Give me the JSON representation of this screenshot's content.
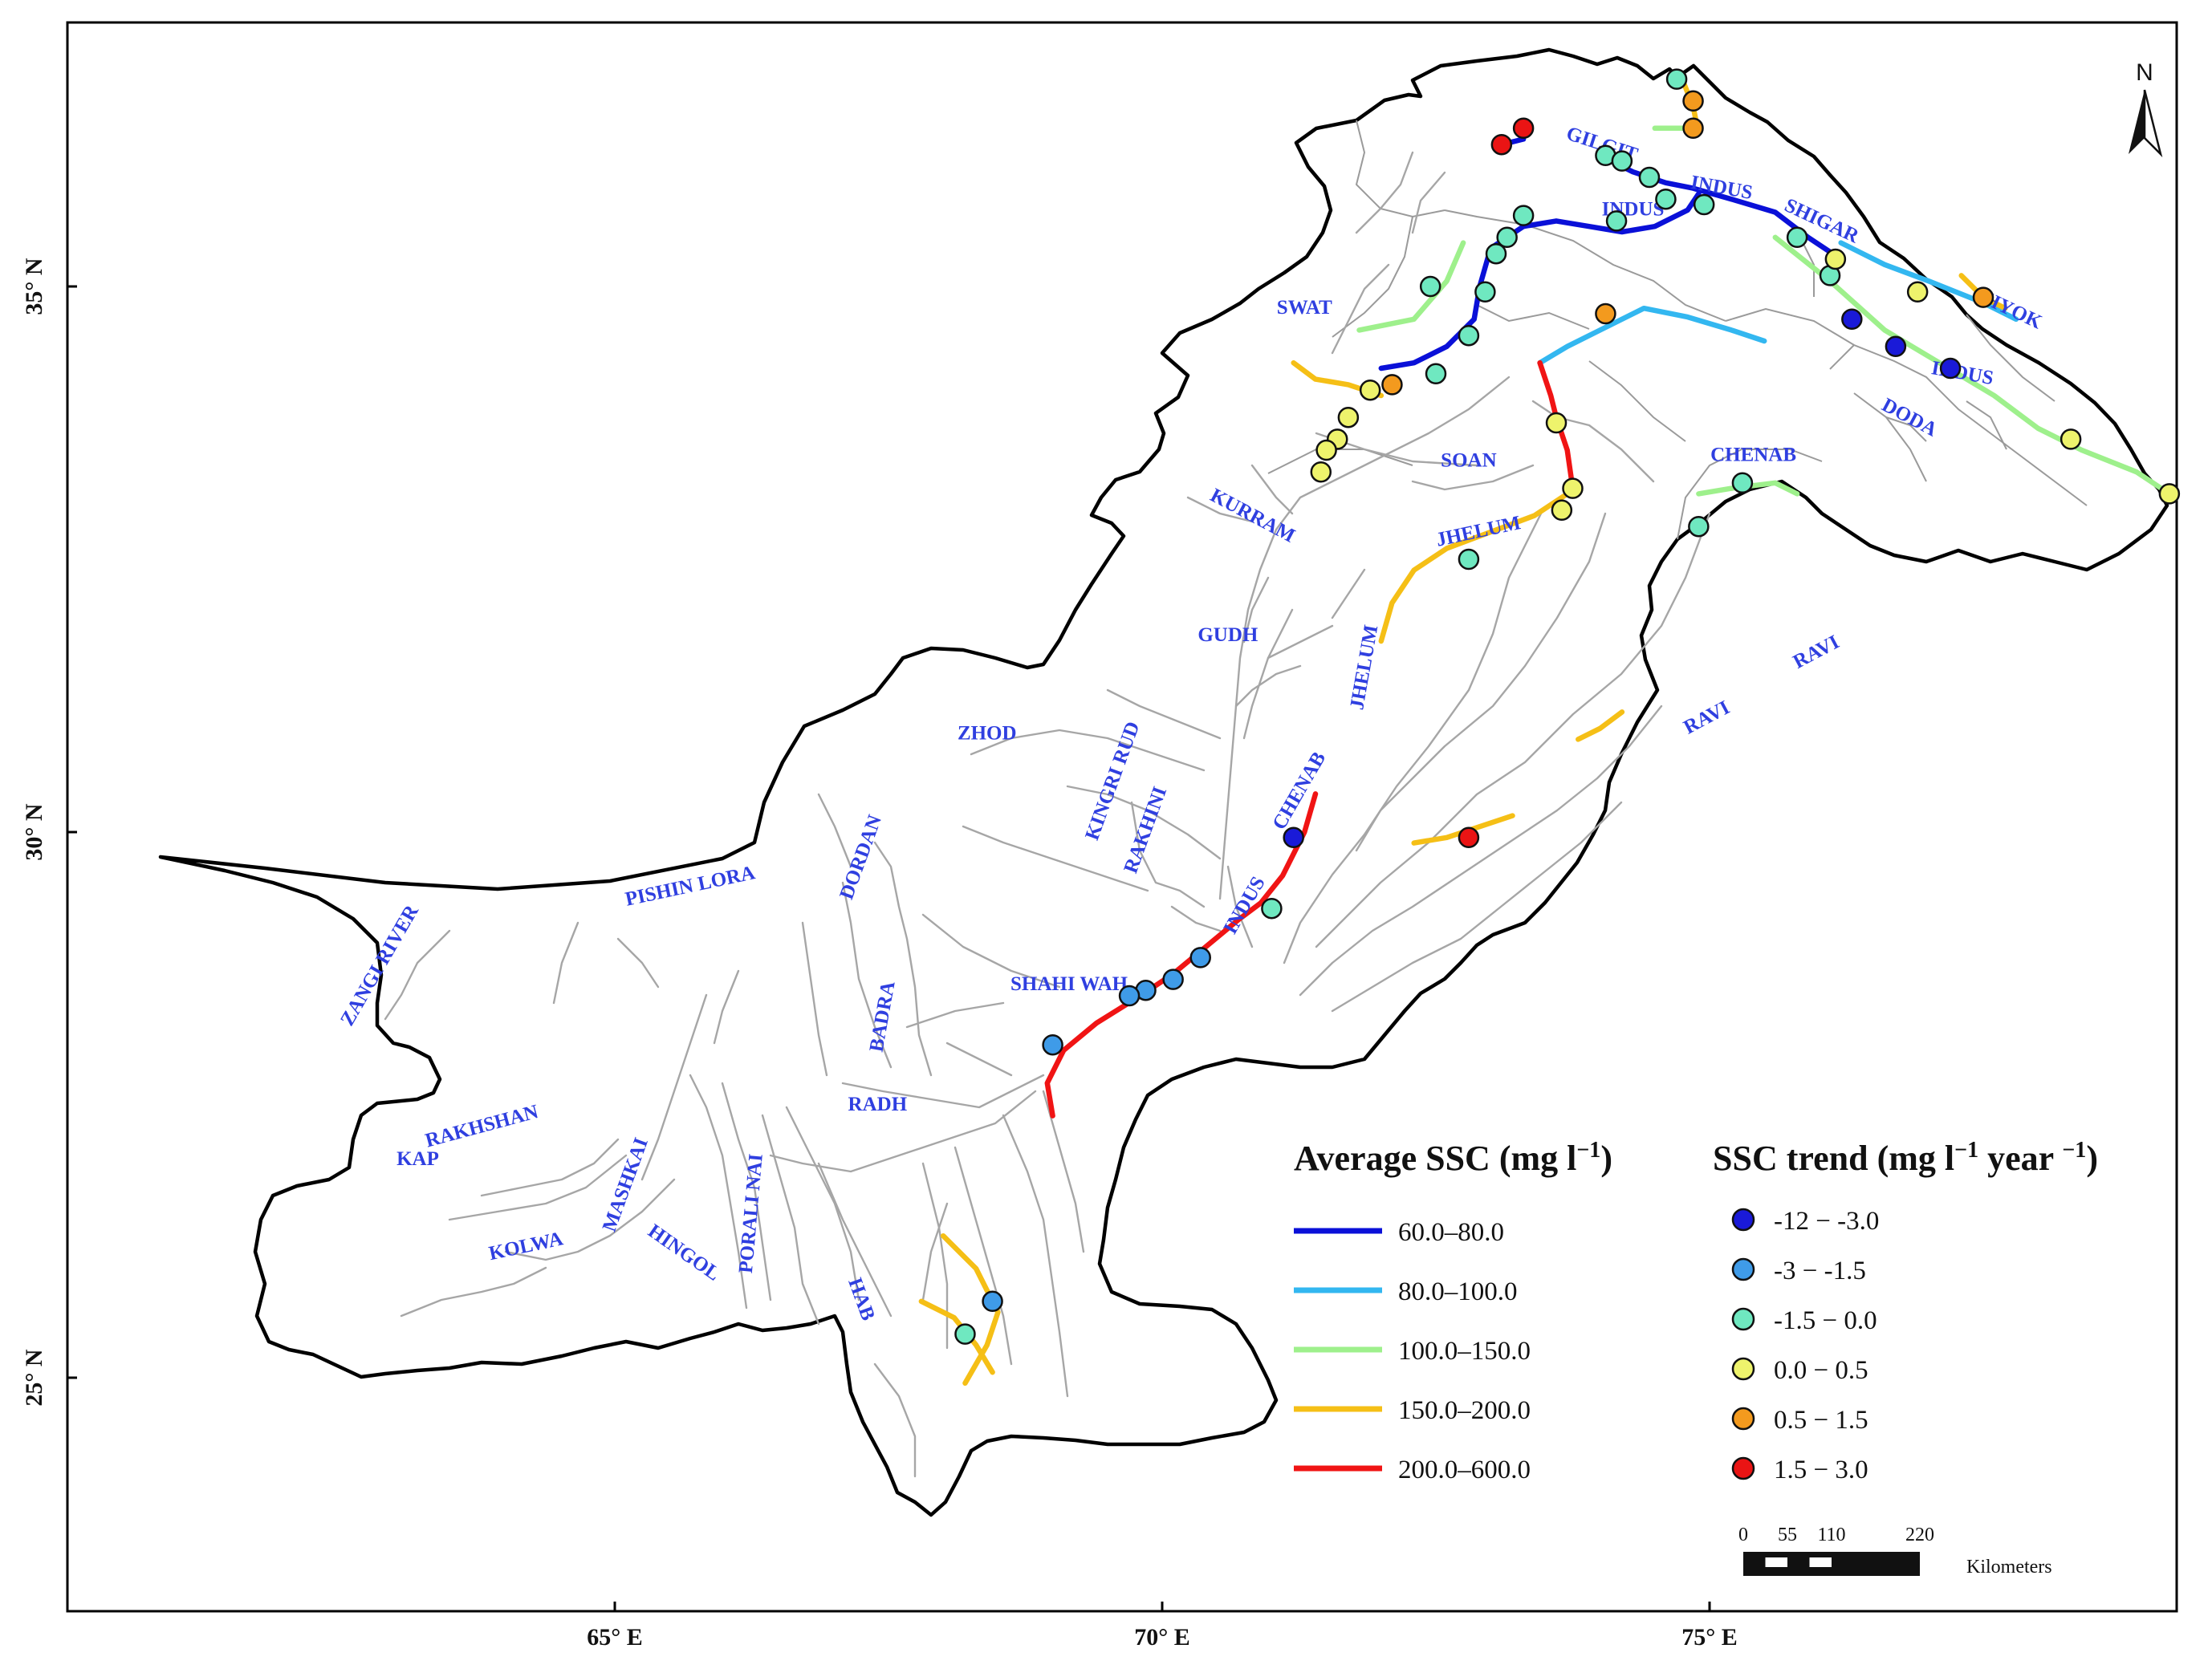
{
  "axes": {
    "x_ticks": [
      {
        "label": "65° E",
        "lon": 65
      },
      {
        "label": "70° E",
        "lon": 70
      },
      {
        "label": "75° E",
        "lon": 75
      }
    ],
    "y_ticks": [
      {
        "label": "25° N",
        "lat": 25
      },
      {
        "label": "30° N",
        "lat": 30
      },
      {
        "label": "35° N",
        "lat": 35
      }
    ]
  },
  "north_arrow": {
    "label": "N",
    "icon": "north-arrow-icon"
  },
  "rivers": [
    {
      "name": "GILGIT",
      "lon": 74.0,
      "lat": 36.25,
      "rotate": 18
    },
    {
      "name": "INDUS",
      "lon": 75.1,
      "lat": 35.85,
      "rotate": 10
    },
    {
      "name": "INDUS",
      "lon": 74.3,
      "lat": 35.65,
      "rotate": 0
    },
    {
      "name": "SHIGAR",
      "lon": 76.0,
      "lat": 35.55,
      "rotate": 25
    },
    {
      "name": "SHYOK",
      "lon": 77.7,
      "lat": 34.75,
      "rotate": 25
    },
    {
      "name": "INDUS",
      "lon": 77.3,
      "lat": 34.15,
      "rotate": 10
    },
    {
      "name": "DODA",
      "lon": 76.8,
      "lat": 33.75,
      "rotate": 28
    },
    {
      "name": "SWAT",
      "lon": 71.3,
      "lat": 34.75,
      "rotate": 0
    },
    {
      "name": "SOAN",
      "lon": 72.8,
      "lat": 33.35,
      "rotate": 0
    },
    {
      "name": "CHENAB",
      "lon": 75.4,
      "lat": 33.4,
      "rotate": 0
    },
    {
      "name": "KURRAM",
      "lon": 70.8,
      "lat": 32.85,
      "rotate": 28
    },
    {
      "name": "JHELUM",
      "lon": 72.9,
      "lat": 32.7,
      "rotate": -12
    },
    {
      "name": "GUDH",
      "lon": 70.6,
      "lat": 31.75,
      "rotate": 0
    },
    {
      "name": "JHELUM",
      "lon": 71.9,
      "lat": 31.5,
      "rotate": -80
    },
    {
      "name": "RAVI",
      "lon": 76.0,
      "lat": 31.6,
      "rotate": -28
    },
    {
      "name": "RAVI",
      "lon": 75.0,
      "lat": 31.0,
      "rotate": -28
    },
    {
      "name": "ZHOD",
      "lon": 68.4,
      "lat": 30.85,
      "rotate": 0
    },
    {
      "name": "KINGRI RUD",
      "lon": 69.6,
      "lat": 30.45,
      "rotate": -70
    },
    {
      "name": "RAKHINI",
      "lon": 69.9,
      "lat": 30.0,
      "rotate": -70
    },
    {
      "name": "CHENAB",
      "lon": 71.3,
      "lat": 30.35,
      "rotate": -60
    },
    {
      "name": "INDUS",
      "lon": 70.8,
      "lat": 29.3,
      "rotate": -60
    },
    {
      "name": "DORDAN",
      "lon": 67.3,
      "lat": 29.75,
      "rotate": -70
    },
    {
      "name": "PISHIN LORA",
      "lon": 65.7,
      "lat": 29.45,
      "rotate": -12
    },
    {
      "name": "ZANGI RIVER",
      "lon": 62.9,
      "lat": 28.75,
      "rotate": -60
    },
    {
      "name": "SHAHI WAH",
      "lon": 69.15,
      "lat": 28.55,
      "rotate": 0
    },
    {
      "name": "BADRA",
      "lon": 67.5,
      "lat": 28.3,
      "rotate": -80
    },
    {
      "name": "RADH",
      "lon": 67.4,
      "lat": 27.45,
      "rotate": 0
    },
    {
      "name": "RAKHSHAN",
      "lon": 63.8,
      "lat": 27.25,
      "rotate": -15
    },
    {
      "name": "KAP",
      "lon": 63.2,
      "lat": 26.95,
      "rotate": 0
    },
    {
      "name": "MASHKAI",
      "lon": 65.15,
      "lat": 26.75,
      "rotate": -70
    },
    {
      "name": "PORALI NAI",
      "lon": 66.3,
      "lat": 26.5,
      "rotate": -85
    },
    {
      "name": "KOLWA",
      "lon": 64.2,
      "lat": 26.15,
      "rotate": -12
    },
    {
      "name": "HINGOL",
      "lon": 65.6,
      "lat": 26.1,
      "rotate": 35
    },
    {
      "name": "HAB",
      "lon": 67.2,
      "lat": 25.7,
      "rotate": 70
    }
  ],
  "river_segments": [
    {
      "class_index": 0,
      "points": [
        [
          74.0,
          36.2
        ],
        [
          74.3,
          36.05
        ],
        [
          74.6,
          35.95
        ],
        [
          74.85,
          35.9
        ],
        [
          75.2,
          35.8
        ],
        [
          75.6,
          35.68
        ],
        [
          75.9,
          35.45
        ],
        [
          76.2,
          35.25
        ]
      ]
    },
    {
      "class_index": 0,
      "points": [
        [
          73.3,
          35.55
        ],
        [
          73.6,
          35.6
        ],
        [
          73.9,
          35.55
        ],
        [
          74.2,
          35.5
        ],
        [
          74.5,
          35.55
        ],
        [
          74.8,
          35.7
        ],
        [
          74.9,
          35.85
        ]
      ]
    },
    {
      "class_index": 0,
      "points": [
        [
          73.3,
          35.55
        ],
        [
          73.0,
          35.35
        ],
        [
          72.9,
          35.0
        ],
        [
          72.85,
          34.7
        ],
        [
          72.6,
          34.45
        ],
        [
          72.3,
          34.3
        ],
        [
          72.0,
          34.25
        ]
      ]
    },
    {
      "class_index": 0,
      "points": [
        [
          73.1,
          36.3
        ],
        [
          73.3,
          36.35
        ]
      ]
    },
    {
      "class_index": 1,
      "points": [
        [
          76.2,
          35.4
        ],
        [
          76.6,
          35.2
        ],
        [
          77.0,
          35.05
        ],
        [
          77.5,
          34.85
        ],
        [
          77.8,
          34.7
        ]
      ]
    },
    {
      "class_index": 1,
      "points": [
        [
          73.45,
          34.3
        ],
        [
          73.7,
          34.45
        ],
        [
          74.0,
          34.6
        ],
        [
          74.4,
          34.8
        ],
        [
          74.8,
          34.72
        ],
        [
          75.2,
          34.6
        ],
        [
          75.5,
          34.5
        ]
      ]
    },
    {
      "class_index": 2,
      "points": [
        [
          75.6,
          35.45
        ],
        [
          76.1,
          35.05
        ],
        [
          76.6,
          34.6
        ],
        [
          77.1,
          34.3
        ],
        [
          77.6,
          34.0
        ],
        [
          78.0,
          33.7
        ],
        [
          78.4,
          33.5
        ],
        [
          78.9,
          33.3
        ],
        [
          79.2,
          33.1
        ]
      ]
    },
    {
      "class_index": 2,
      "points": [
        [
          71.8,
          34.6
        ],
        [
          72.3,
          34.7
        ],
        [
          72.6,
          35.05
        ],
        [
          72.75,
          35.4
        ]
      ]
    },
    {
      "class_index": 2,
      "points": [
        [
          74.9,
          33.1
        ],
        [
          75.2,
          33.15
        ],
        [
          75.6,
          33.2
        ],
        [
          75.8,
          33.1
        ]
      ]
    },
    {
      "class_index": 2,
      "points": [
        [
          74.5,
          36.45
        ],
        [
          74.75,
          36.45
        ]
      ]
    },
    {
      "class_index": 3,
      "points": [
        [
          71.2,
          34.3
        ],
        [
          71.4,
          34.15
        ],
        [
          71.7,
          34.1
        ],
        [
          72.0,
          34.0
        ]
      ]
    },
    {
      "class_index": 3,
      "points": [
        [
          73.7,
          33.1
        ],
        [
          73.4,
          32.9
        ],
        [
          73.0,
          32.75
        ],
        [
          72.6,
          32.6
        ],
        [
          72.3,
          32.4
        ],
        [
          72.1,
          32.1
        ],
        [
          72.0,
          31.75
        ]
      ]
    },
    {
      "class_index": 3,
      "points": [
        [
          72.3,
          29.9
        ],
        [
          72.6,
          29.95
        ],
        [
          72.9,
          30.05
        ],
        [
          73.2,
          30.15
        ]
      ]
    },
    {
      "class_index": 3,
      "points": [
        [
          73.8,
          30.85
        ],
        [
          74.0,
          30.95
        ],
        [
          74.2,
          31.1
        ]
      ]
    },
    {
      "class_index": 3,
      "points": [
        [
          68.0,
          26.3
        ],
        [
          68.3,
          26.0
        ],
        [
          68.5,
          25.6
        ],
        [
          68.4,
          25.3
        ],
        [
          68.2,
          24.95
        ]
      ]
    },
    {
      "class_index": 3,
      "points": [
        [
          67.8,
          25.7
        ],
        [
          68.1,
          25.55
        ],
        [
          68.3,
          25.3
        ],
        [
          68.45,
          25.05
        ]
      ]
    },
    {
      "class_index": 3,
      "points": [
        [
          74.75,
          36.9
        ],
        [
          74.85,
          36.65
        ],
        [
          74.9,
          36.4
        ]
      ]
    },
    {
      "class_index": 3,
      "points": [
        [
          77.3,
          35.1
        ],
        [
          77.5,
          34.9
        ],
        [
          77.7,
          34.8
        ]
      ]
    },
    {
      "class_index": 4,
      "points": [
        [
          73.45,
          34.3
        ],
        [
          73.55,
          34.0
        ],
        [
          73.6,
          33.8
        ],
        [
          73.7,
          33.5
        ],
        [
          73.75,
          33.15
        ]
      ]
    },
    {
      "class_index": 4,
      "points": [
        [
          71.4,
          30.35
        ],
        [
          71.3,
          30.0
        ],
        [
          71.1,
          29.6
        ],
        [
          70.9,
          29.35
        ],
        [
          70.7,
          29.2
        ],
        [
          70.4,
          28.95
        ],
        [
          70.1,
          28.7
        ],
        [
          69.8,
          28.5
        ],
        [
          69.4,
          28.25
        ],
        [
          69.1,
          28.0
        ],
        [
          68.95,
          27.7
        ],
        [
          69.0,
          27.4
        ]
      ]
    }
  ],
  "stations": [
    {
      "lon": 73.1,
      "lat": 36.3,
      "class_index": 5
    },
    {
      "lon": 73.3,
      "lat": 36.45,
      "class_index": 5
    },
    {
      "lon": 72.8,
      "lat": 29.95,
      "class_index": 5
    },
    {
      "lon": 74.7,
      "lat": 36.9,
      "class_index": 2
    },
    {
      "lon": 74.85,
      "lat": 36.7,
      "class_index": 4
    },
    {
      "lon": 74.85,
      "lat": 36.45,
      "class_index": 4
    },
    {
      "lon": 74.05,
      "lat": 36.2,
      "class_index": 2
    },
    {
      "lon": 74.2,
      "lat": 36.15,
      "class_index": 2
    },
    {
      "lon": 74.45,
      "lat": 36.0,
      "class_index": 2
    },
    {
      "lon": 74.6,
      "lat": 35.8,
      "class_index": 2
    },
    {
      "lon": 74.95,
      "lat": 35.75,
      "class_index": 2
    },
    {
      "lon": 74.15,
      "lat": 35.6,
      "class_index": 2
    },
    {
      "lon": 73.3,
      "lat": 35.65,
      "class_index": 2
    },
    {
      "lon": 73.15,
      "lat": 35.45,
      "class_index": 2
    },
    {
      "lon": 73.05,
      "lat": 35.3,
      "class_index": 2
    },
    {
      "lon": 72.95,
      "lat": 34.95,
      "class_index": 2
    },
    {
      "lon": 72.8,
      "lat": 34.55,
      "class_index": 2
    },
    {
      "lon": 72.5,
      "lat": 34.2,
      "class_index": 2
    },
    {
      "lon": 72.45,
      "lat": 35.0,
      "class_index": 2
    },
    {
      "lon": 75.8,
      "lat": 35.45,
      "class_index": 2
    },
    {
      "lon": 76.1,
      "lat": 35.1,
      "class_index": 2
    },
    {
      "lon": 75.3,
      "lat": 33.2,
      "class_index": 2
    },
    {
      "lon": 74.9,
      "lat": 32.8,
      "class_index": 2
    },
    {
      "lon": 72.8,
      "lat": 32.5,
      "class_index": 2
    },
    {
      "lon": 71.0,
      "lat": 29.3,
      "class_index": 2
    },
    {
      "lon": 68.2,
      "lat": 25.4,
      "class_index": 2
    },
    {
      "lon": 76.15,
      "lat": 35.25,
      "class_index": 3
    },
    {
      "lon": 76.9,
      "lat": 34.95,
      "class_index": 3
    },
    {
      "lon": 78.3,
      "lat": 33.6,
      "class_index": 3
    },
    {
      "lon": 79.2,
      "lat": 33.1,
      "class_index": 3
    },
    {
      "lon": 71.9,
      "lat": 34.05,
      "class_index": 3
    },
    {
      "lon": 71.7,
      "lat": 33.8,
      "class_index": 3
    },
    {
      "lon": 71.6,
      "lat": 33.6,
      "class_index": 3
    },
    {
      "lon": 71.5,
      "lat": 33.5,
      "class_index": 3
    },
    {
      "lon": 71.45,
      "lat": 33.3,
      "class_index": 3
    },
    {
      "lon": 73.6,
      "lat": 33.75,
      "class_index": 3
    },
    {
      "lon": 73.75,
      "lat": 33.15,
      "class_index": 3
    },
    {
      "lon": 73.65,
      "lat": 32.95,
      "class_index": 3
    },
    {
      "lon": 72.1,
      "lat": 34.1,
      "class_index": 4
    },
    {
      "lon": 74.05,
      "lat": 34.75,
      "class_index": 4
    },
    {
      "lon": 77.5,
      "lat": 34.9,
      "class_index": 4
    },
    {
      "lon": 76.3,
      "lat": 34.7,
      "class_index": 0
    },
    {
      "lon": 76.7,
      "lat": 34.45,
      "class_index": 0
    },
    {
      "lon": 77.2,
      "lat": 34.25,
      "class_index": 0
    },
    {
      "lon": 71.2,
      "lat": 29.95,
      "class_index": 0
    },
    {
      "lon": 70.35,
      "lat": 28.85,
      "class_index": 1
    },
    {
      "lon": 70.1,
      "lat": 28.65,
      "class_index": 1
    },
    {
      "lon": 69.85,
      "lat": 28.55,
      "class_index": 1
    },
    {
      "lon": 69.7,
      "lat": 28.5,
      "class_index": 1
    },
    {
      "lon": 69.0,
      "lat": 28.05,
      "class_index": 1
    },
    {
      "lon": 68.45,
      "lat": 25.7,
      "class_index": 1
    }
  ],
  "legend": {
    "ssc_title": "Average SSC (mg l",
    "ssc_sup": "−1",
    "ssc_close": ")",
    "ssc_classes": [
      {
        "label": "60.0–80.0",
        "color": "#0a10d8"
      },
      {
        "label": "80.0–100.0",
        "color": "#33b7f0"
      },
      {
        "label": "100.0–150.0",
        "color": "#9ef08c"
      },
      {
        "label": "150.0–200.0",
        "color": "#f5bf16"
      },
      {
        "label": "200.0–600.0",
        "color": "#f01414"
      }
    ],
    "trend_title": "SSC trend (mg l",
    "trend_sup1": "−1",
    "trend_mid": " year ",
    "trend_sup2": "−1",
    "trend_close": ")",
    "trend_classes": [
      {
        "label": "-12 − -3.0",
        "color": "#1a1ad8"
      },
      {
        "label": "-3 − -1.5",
        "color": "#3f9be8"
      },
      {
        "label": "-1.5 − 0.0",
        "color": "#6fe8c0"
      },
      {
        "label": " 0.0 − 0.5",
        "color": "#eef36c"
      },
      {
        "label": "0.5 − 1.5",
        "color": "#f39a1e"
      },
      {
        "label": "1.5 − 3.0",
        "color": "#ea1414"
      }
    ]
  },
  "scale_bar": {
    "ticks": [
      {
        "label": "0",
        "km": 0
      },
      {
        "label": "55",
        "km": 55
      },
      {
        "label": "110",
        "km": 110
      },
      {
        "label": "220",
        "km": 220
      }
    ],
    "unit": "Kilometers"
  }
}
